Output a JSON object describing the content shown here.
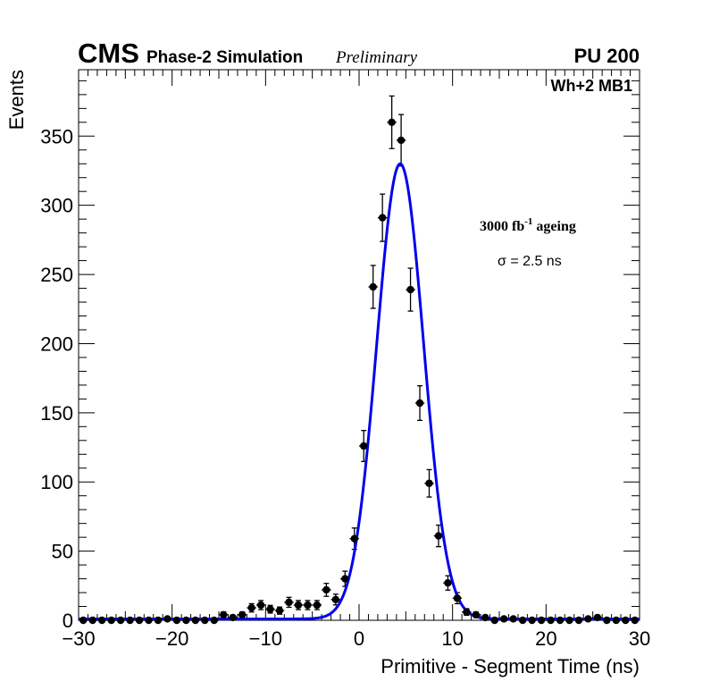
{
  "header": {
    "experiment": "CMS",
    "subtitle": "Phase-2 Simulation",
    "status": "Preliminary",
    "pileup": "PU 200"
  },
  "chart_data": {
    "type": "scatter",
    "title": "",
    "xlabel": "Primitive - Segment Time (ns)",
    "ylabel": "Events",
    "xlim": [
      -30,
      30
    ],
    "ylim": [
      0,
      398
    ],
    "x_ticks": [
      -30,
      -20,
      -10,
      0,
      10,
      20,
      30
    ],
    "x_tick_labels": [
      "−30",
      "−20",
      "−10",
      "0",
      "10",
      "20",
      "30"
    ],
    "y_ticks": [
      0,
      50,
      100,
      150,
      200,
      250,
      300,
      350
    ],
    "y_tick_labels": [
      "0",
      "50",
      "100",
      "150",
      "200",
      "250",
      "300",
      "350"
    ],
    "grid": false,
    "legend": "none",
    "chamber_label": "Wh+2 MB1",
    "annotations": {
      "ageing_value": "3000 fb",
      "ageing_exp": "-1",
      "ageing_word": " ageing",
      "sigma_text": "σ = 2.5 ns"
    },
    "series": [
      {
        "name": "Simulation",
        "marker": "circle",
        "color": "#000000",
        "x": [
          -29.5,
          -28.5,
          -27.5,
          -26.5,
          -25.5,
          -24.5,
          -23.5,
          -22.5,
          -21.5,
          -20.5,
          -19.5,
          -18.5,
          -17.5,
          -16.5,
          -15.5,
          -14.5,
          -13.5,
          -12.5,
          -11.5,
          -10.5,
          -9.5,
          -8.5,
          -7.5,
          -6.5,
          -5.5,
          -4.5,
          -3.5,
          -2.5,
          -1.5,
          -0.5,
          0.5,
          1.5,
          2.5,
          3.5,
          4.5,
          5.5,
          6.5,
          7.5,
          8.5,
          9.5,
          10.5,
          11.5,
          12.5,
          13.5,
          14.5,
          15.5,
          16.5,
          17.5,
          18.5,
          19.5,
          20.5,
          21.5,
          22.5,
          23.5,
          24.5,
          25.5,
          26.5,
          27.5,
          28.5,
          29.5
        ],
        "y": [
          0,
          0,
          0,
          0,
          0,
          0,
          0,
          0,
          0,
          1,
          0,
          0,
          0,
          0,
          0,
          4,
          2,
          4,
          9,
          11,
          8,
          7,
          13,
          11,
          11,
          11,
          22,
          15,
          30,
          59,
          126,
          241,
          291,
          360,
          347,
          239,
          157,
          99,
          61,
          27,
          16,
          6,
          4,
          2,
          0,
          1,
          1,
          0,
          0,
          0,
          0,
          0,
          0,
          0,
          1,
          2,
          0,
          0,
          0,
          0
        ],
        "err": [
          0,
          0,
          0,
          0,
          0,
          0,
          0,
          0,
          0,
          1,
          0,
          0,
          0,
          0,
          0,
          2,
          1.4,
          2,
          3,
          3.3,
          2.8,
          2.6,
          3.6,
          3.3,
          3.3,
          3.3,
          4.7,
          3.9,
          5.5,
          7.7,
          11.2,
          15.5,
          17.1,
          19,
          18.6,
          15.5,
          12.5,
          9.9,
          7.8,
          5.2,
          4,
          2.4,
          2,
          1.4,
          0,
          1,
          1,
          0,
          0,
          0,
          0,
          0,
          0,
          0,
          1,
          1.4,
          0,
          0,
          0,
          0
        ]
      },
      {
        "name": "Gaussian fit",
        "type": "line",
        "color": "#0000ee",
        "mean": 4.4,
        "sigma": 2.5,
        "amplitude": 329,
        "baseline": 1
      }
    ]
  }
}
